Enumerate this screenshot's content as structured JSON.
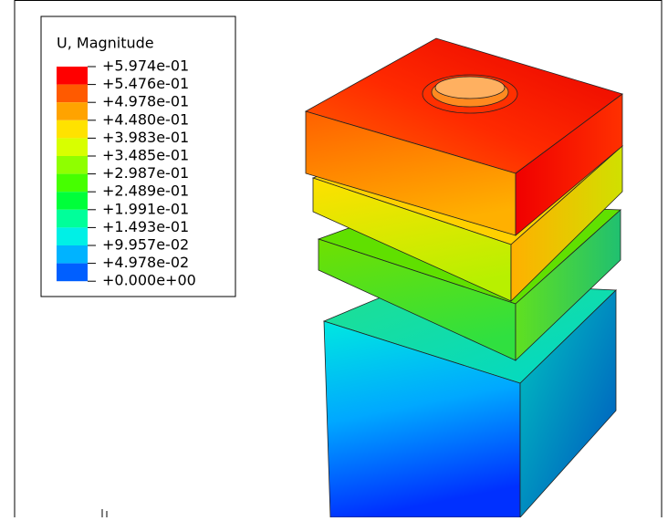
{
  "legend": {
    "title": "U, Magnitude",
    "labels": [
      "+5.974e-01",
      "+5.476e-01",
      "+4.978e-01",
      "+4.480e-01",
      "+3.983e-01",
      "+3.485e-01",
      "+2.987e-01",
      "+2.489e-01",
      "+1.991e-01",
      "+1.493e-01",
      "+9.957e-02",
      "+4.978e-02",
      "+0.000e+00"
    ],
    "colors": [
      "#ff0000",
      "#ff5a00",
      "#ffa300",
      "#ffe200",
      "#d8ff00",
      "#8fff00",
      "#46ff00",
      "#00ff3a",
      "#00ff9a",
      "#00f0e6",
      "#00b3ff",
      "#005fff",
      "#0000ff"
    ]
  }
}
